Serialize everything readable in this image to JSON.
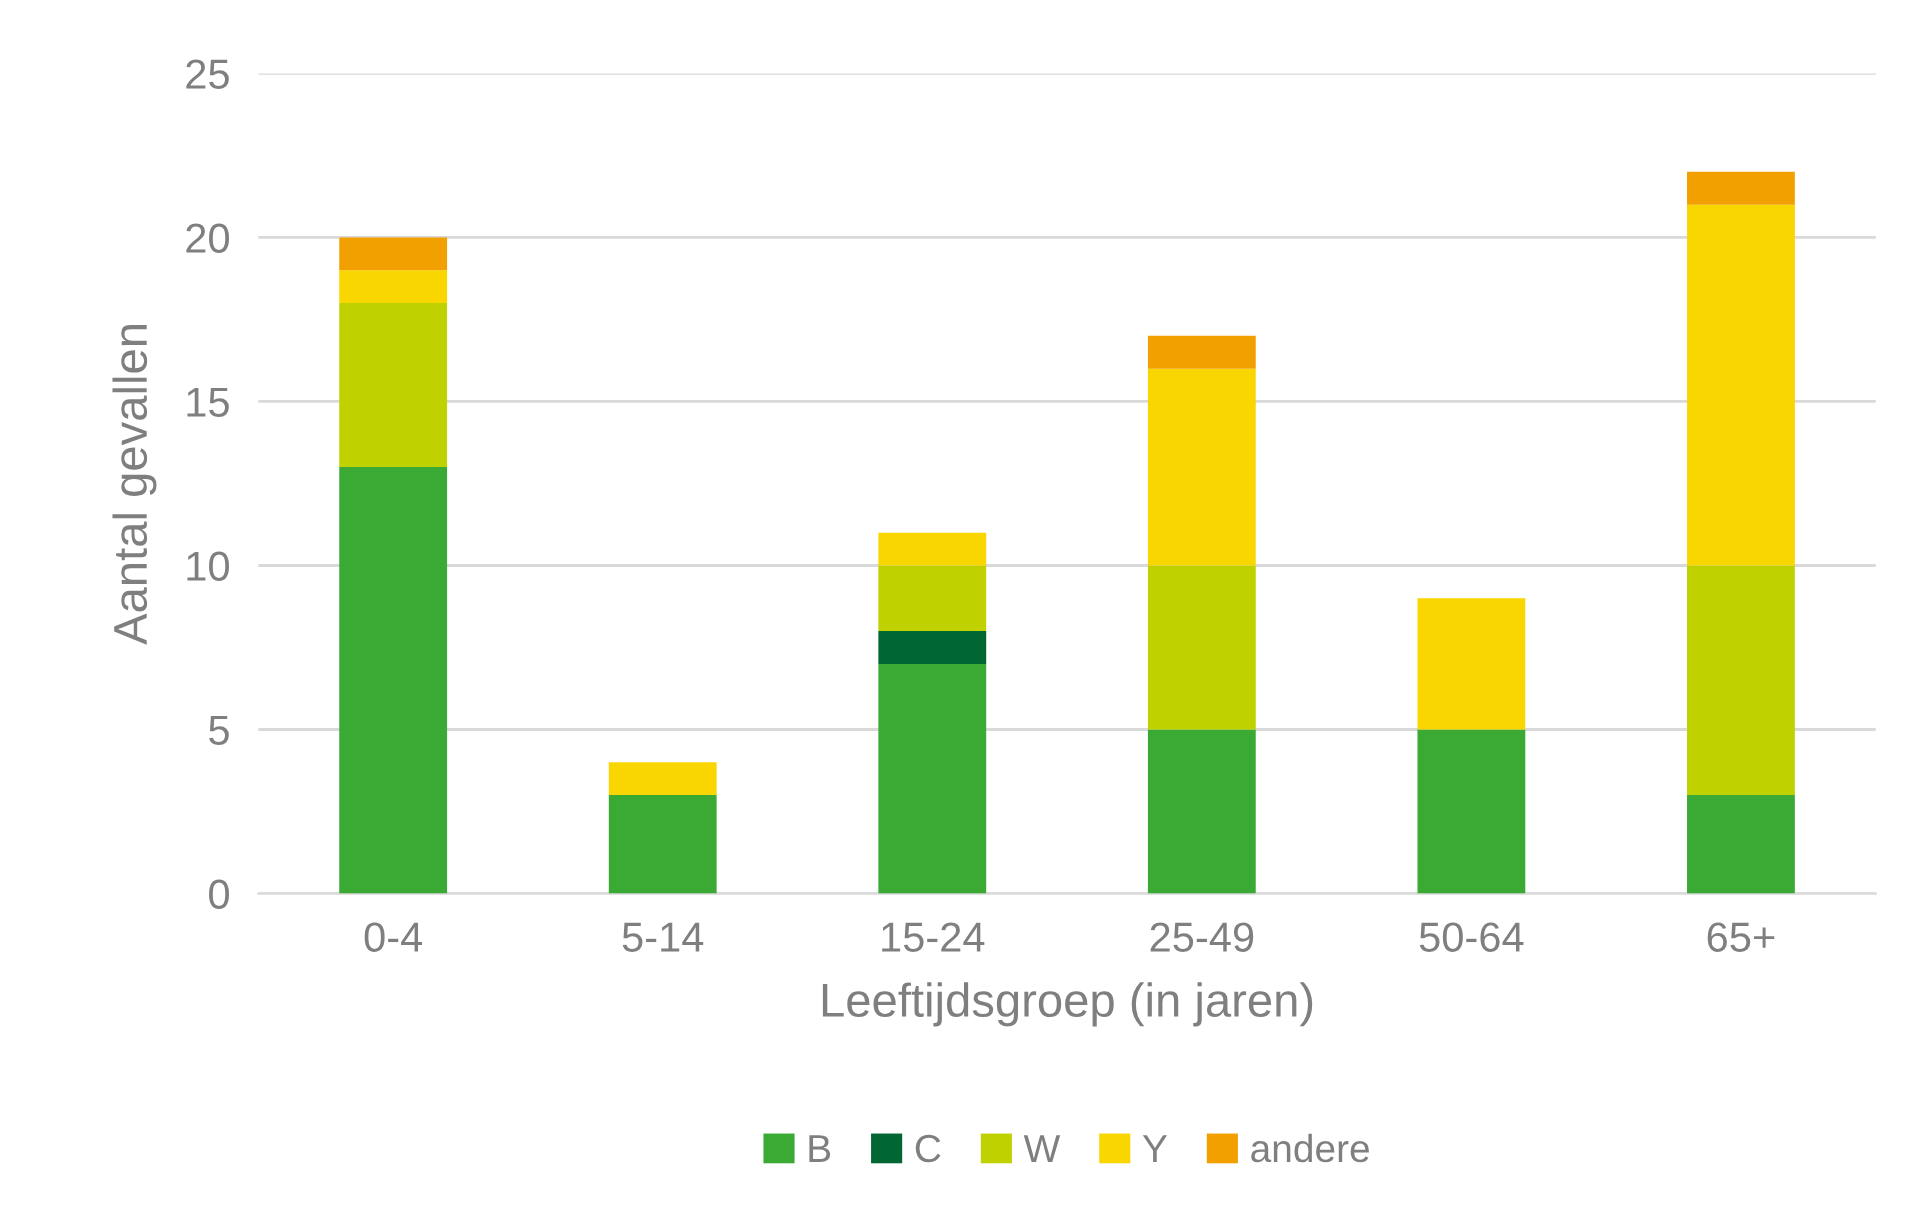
{
  "chart_data": {
    "type": "bar",
    "stacked": true,
    "xlabel": "Leeftijdsgroep (in jaren)",
    "ylabel": "Aantal gevallen",
    "categories": [
      "0-4",
      "5-14",
      "15-24",
      "25-49",
      "50-64",
      "65+"
    ],
    "series": [
      {
        "name": "B",
        "color": "#3aaa35",
        "values": [
          13,
          3,
          7,
          5,
          5,
          3
        ]
      },
      {
        "name": "C",
        "color": "#006633",
        "values": [
          0,
          0,
          1,
          0,
          0,
          0
        ]
      },
      {
        "name": "W",
        "color": "#bfd200",
        "values": [
          5,
          0,
          2,
          5,
          0,
          7
        ]
      },
      {
        "name": "Y",
        "color": "#fad600",
        "values": [
          1,
          1,
          1,
          6,
          4,
          11
        ]
      },
      {
        "name": "andere",
        "color": "#f29f00",
        "values": [
          1,
          0,
          0,
          1,
          0,
          1
        ]
      }
    ],
    "ylim": [
      0,
      25
    ],
    "yticks": [
      0,
      5,
      10,
      15,
      20,
      25
    ],
    "grid": "y",
    "legend": "bottom"
  }
}
